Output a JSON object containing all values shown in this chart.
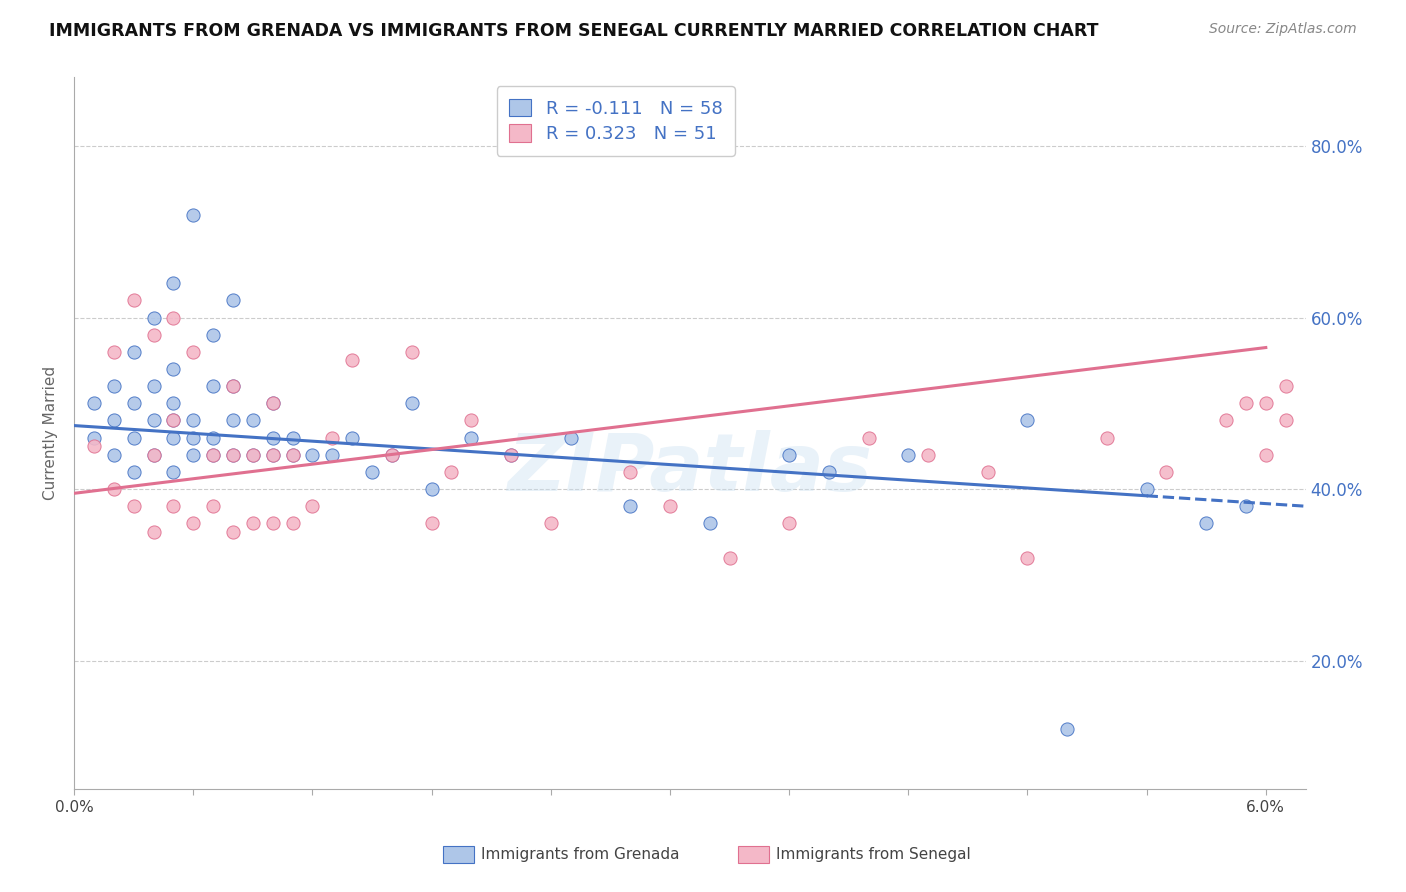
{
  "title": "IMMIGRANTS FROM GRENADA VS IMMIGRANTS FROM SENEGAL CURRENTLY MARRIED CORRELATION CHART",
  "source": "Source: ZipAtlas.com",
  "ylabel": "Currently Married",
  "ytick_values": [
    0.2,
    0.4,
    0.6,
    0.8
  ],
  "xlim": [
    0.0,
    0.062
  ],
  "ylim": [
    0.05,
    0.88
  ],
  "grenada_R": -0.111,
  "grenada_N": 58,
  "senegal_R": 0.323,
  "senegal_N": 51,
  "grenada_color": "#aec6e8",
  "senegal_color": "#f4b8c8",
  "grenada_line_color": "#4472c4",
  "senegal_line_color": "#e07090",
  "watermark": "ZIPatlas",
  "legend_R1": "R = -0.111",
  "legend_N1": "N = 58",
  "legend_R2": "R = 0.323",
  "legend_N2": "N = 51",
  "grenada_line_y0": 0.474,
  "grenada_line_y1": 0.383,
  "senegal_line_y0": 0.395,
  "senegal_line_y1": 0.565,
  "grenada_x": [
    0.001,
    0.001,
    0.002,
    0.002,
    0.002,
    0.003,
    0.003,
    0.003,
    0.003,
    0.004,
    0.004,
    0.004,
    0.004,
    0.005,
    0.005,
    0.005,
    0.005,
    0.005,
    0.005,
    0.006,
    0.006,
    0.006,
    0.006,
    0.007,
    0.007,
    0.007,
    0.007,
    0.008,
    0.008,
    0.008,
    0.008,
    0.009,
    0.009,
    0.01,
    0.01,
    0.01,
    0.011,
    0.011,
    0.012,
    0.013,
    0.014,
    0.015,
    0.016,
    0.017,
    0.018,
    0.02,
    0.022,
    0.025,
    0.028,
    0.032,
    0.036,
    0.038,
    0.042,
    0.048,
    0.05,
    0.054,
    0.057,
    0.059
  ],
  "grenada_y": [
    0.46,
    0.5,
    0.44,
    0.48,
    0.52,
    0.42,
    0.46,
    0.5,
    0.56,
    0.44,
    0.48,
    0.52,
    0.6,
    0.42,
    0.46,
    0.48,
    0.5,
    0.54,
    0.64,
    0.44,
    0.46,
    0.48,
    0.72,
    0.44,
    0.46,
    0.52,
    0.58,
    0.44,
    0.48,
    0.52,
    0.62,
    0.44,
    0.48,
    0.44,
    0.46,
    0.5,
    0.44,
    0.46,
    0.44,
    0.44,
    0.46,
    0.42,
    0.44,
    0.5,
    0.4,
    0.46,
    0.44,
    0.46,
    0.38,
    0.36,
    0.44,
    0.42,
    0.44,
    0.48,
    0.12,
    0.4,
    0.36,
    0.38
  ],
  "senegal_x": [
    0.001,
    0.002,
    0.002,
    0.003,
    0.003,
    0.004,
    0.004,
    0.004,
    0.005,
    0.005,
    0.005,
    0.006,
    0.006,
    0.007,
    0.007,
    0.008,
    0.008,
    0.008,
    0.009,
    0.009,
    0.01,
    0.01,
    0.01,
    0.011,
    0.011,
    0.012,
    0.013,
    0.014,
    0.016,
    0.017,
    0.018,
    0.019,
    0.02,
    0.022,
    0.024,
    0.028,
    0.03,
    0.033,
    0.036,
    0.04,
    0.043,
    0.046,
    0.048,
    0.052,
    0.055,
    0.058,
    0.059,
    0.06,
    0.06,
    0.061,
    0.061
  ],
  "senegal_y": [
    0.45,
    0.4,
    0.56,
    0.38,
    0.62,
    0.35,
    0.44,
    0.58,
    0.38,
    0.48,
    0.6,
    0.36,
    0.56,
    0.38,
    0.44,
    0.35,
    0.44,
    0.52,
    0.36,
    0.44,
    0.36,
    0.44,
    0.5,
    0.36,
    0.44,
    0.38,
    0.46,
    0.55,
    0.44,
    0.56,
    0.36,
    0.42,
    0.48,
    0.44,
    0.36,
    0.42,
    0.38,
    0.32,
    0.36,
    0.46,
    0.44,
    0.42,
    0.32,
    0.46,
    0.42,
    0.48,
    0.5,
    0.44,
    0.5,
    0.52,
    0.48
  ]
}
